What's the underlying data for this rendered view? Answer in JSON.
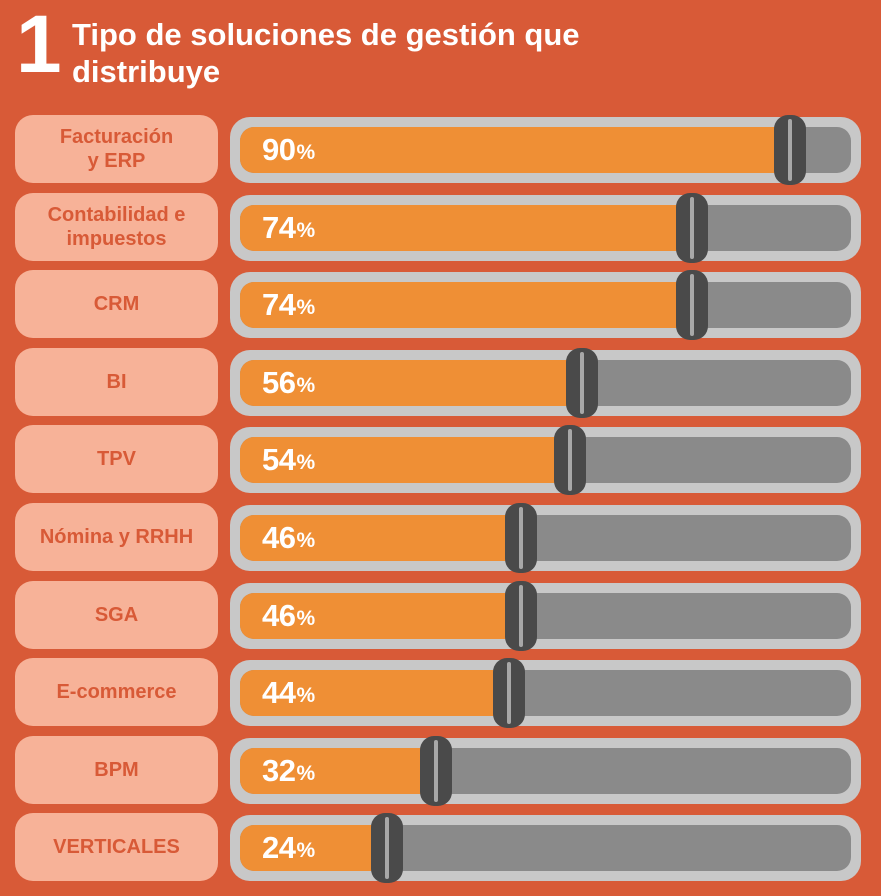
{
  "header": {
    "number": "1",
    "title": "Tipo de soluciones de gestión que distribuye"
  },
  "colors": {
    "background": "#d85a37",
    "label_pill": "#f7b298",
    "bar_fill": "#ef8f35",
    "track_outer": "#c8c8c8",
    "track_inner": "#8a8a8a",
    "knob": "#4a4a4a"
  },
  "chart_data": {
    "type": "bar",
    "orientation": "horizontal",
    "title": "Tipo de soluciones de gestión que distribuye",
    "unit": "%",
    "xlim": [
      0,
      100
    ],
    "categories": [
      "Facturación\ny ERP",
      "Contabilidad e impuestos",
      "CRM",
      "BI",
      "TPV",
      "Nómina y RRHH",
      "SGA",
      "E-commerce",
      "BPM",
      "VERTICALES"
    ],
    "values": [
      90,
      74,
      74,
      56,
      54,
      46,
      46,
      44,
      32,
      24
    ]
  }
}
